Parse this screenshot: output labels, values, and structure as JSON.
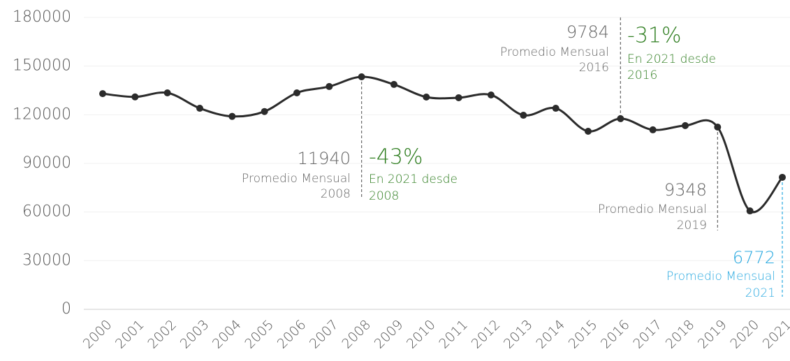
{
  "chart_data": {
    "type": "line",
    "categories": [
      "2000",
      "2001",
      "2002",
      "2003",
      "2004",
      "2005",
      "2006",
      "2007",
      "2008",
      "2009",
      "2010",
      "2011",
      "2012",
      "2013",
      "2014",
      "2015",
      "2016",
      "2017",
      "2018",
      "2019",
      "2020",
      "2021"
    ],
    "values": [
      133000,
      131000,
      133500,
      124000,
      119000,
      122000,
      133500,
      137400,
      143400,
      138700,
      130900,
      130500,
      132200,
      119700,
      124000,
      109800,
      117600,
      110700,
      113300,
      112400,
      60700,
      81400
    ],
    "color": "#2b2b2b",
    "ylim": [
      0,
      180000
    ],
    "yticks": [
      0,
      30000,
      60000,
      90000,
      120000,
      150000,
      180000
    ],
    "grid": true,
    "annotations": [
      {
        "value": "11940",
        "label": "Promedio Mensual",
        "year": "2008",
        "change": "-43%",
        "note": "En 2021 desde",
        "note_year": "2008",
        "color": "#666666",
        "change_color": "#2e7d1f"
      },
      {
        "value": "9784",
        "label": "Promedio Mensual",
        "year": "2016",
        "change": "-31%",
        "note": "En 2021 desde",
        "note_year": "2016",
        "color": "#666666",
        "change_color": "#2e7d1f"
      },
      {
        "value": "9348",
        "label": "Promedio Mensual",
        "year": "2019",
        "color": "#666666"
      },
      {
        "value": "6772",
        "label": "Promedio Mensual",
        "year": "2021",
        "color": "#29a9e0"
      }
    ]
  }
}
